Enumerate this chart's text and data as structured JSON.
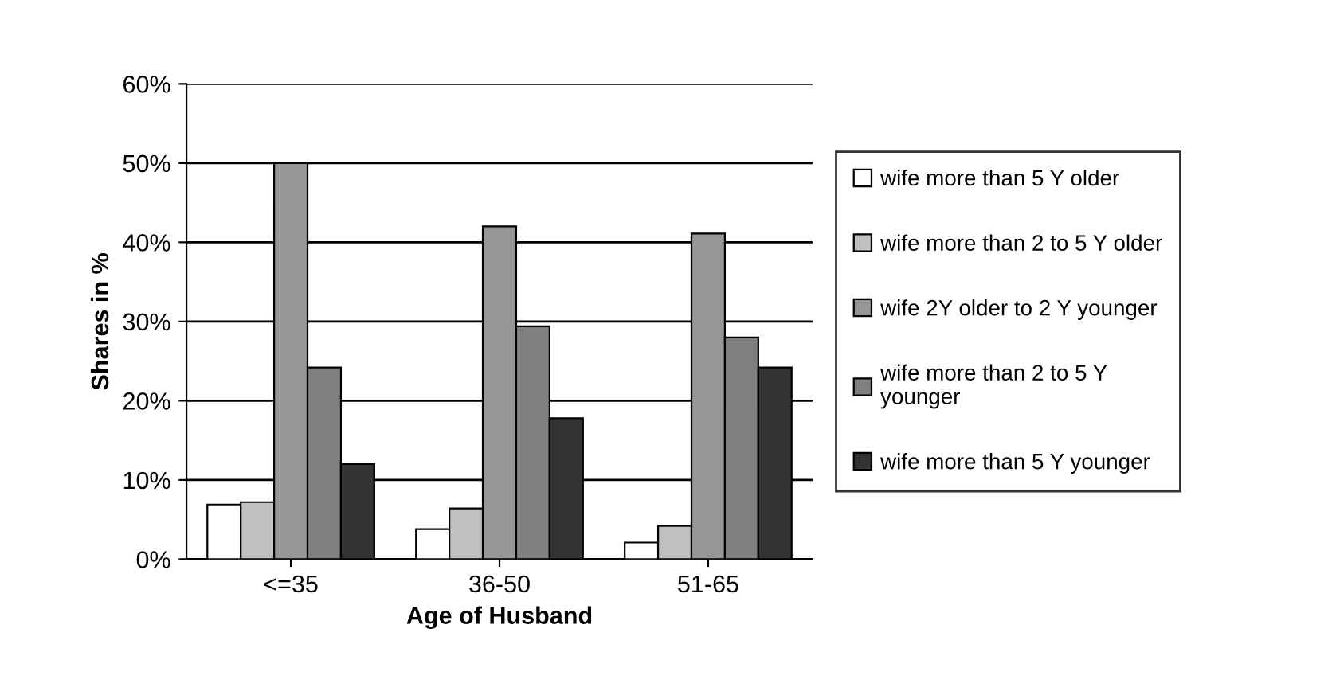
{
  "chart_data": {
    "type": "bar",
    "xlabel": "Age of Husband",
    "ylabel": "Shares in %",
    "categories": [
      "<=35",
      "36-50",
      "51-65"
    ],
    "series": [
      {
        "name": "wife more than 5 Y older",
        "color": "#ffffff",
        "values": [
          6.9,
          3.8,
          2.1
        ]
      },
      {
        "name": "wife more than 2 to 5 Y older",
        "color": "#c0c0c0",
        "values": [
          7.2,
          6.4,
          4.2
        ]
      },
      {
        "name": "wife 2Y older to 2 Y younger",
        "color": "#969696",
        "values": [
          50,
          42,
          41.1
        ]
      },
      {
        "name": "wife more than 2 to 5 Y younger",
        "color": "#7f7f7f",
        "values": [
          24.2,
          29.4,
          28
        ]
      },
      {
        "name": "wife more than 5 Y younger",
        "color": "#333333",
        "values": [
          12,
          17.8,
          24.2
        ]
      }
    ],
    "ylim": [
      0,
      60
    ],
    "yticks": [
      {
        "value": 0,
        "label": "0%"
      },
      {
        "value": 10,
        "label": "10%"
      },
      {
        "value": 20,
        "label": "20%"
      },
      {
        "value": 30,
        "label": "30%"
      },
      {
        "value": 40,
        "label": "40%"
      },
      {
        "value": 50,
        "label": "50%"
      },
      {
        "value": 60,
        "label": "60%"
      }
    ],
    "grid": "y",
    "legend": "right"
  }
}
